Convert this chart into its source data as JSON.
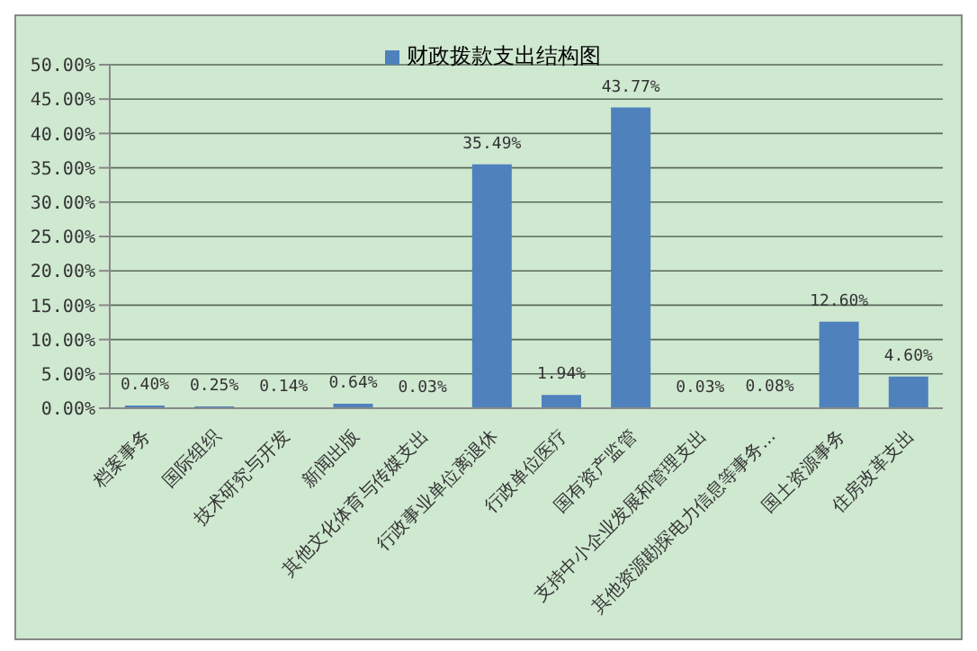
{
  "chart_data": {
    "type": "bar",
    "categories": [
      "档案事务",
      "国际组织",
      "技术研究与开发",
      "新闻出版",
      "其他文化体育与传媒支出",
      "行政事业单位离退休",
      "行政单位医疗",
      "国有资产监管",
      "支持中小企业发展和管理支出",
      "其他资源勘探电力信息等事务...",
      "国土资源事务",
      "住房改革支出"
    ],
    "series": [
      {
        "name": "财政拨款支出结构图",
        "color": "#4f81bd",
        "values": [
          0.4,
          0.25,
          0.14,
          0.64,
          0.03,
          35.49,
          1.94,
          43.77,
          0.03,
          0.08,
          12.6,
          4.6
        ],
        "value_labels": [
          "0.40%",
          "0.25%",
          "0.14%",
          "0.64%",
          "0.03%",
          "35.49%",
          "1.94%",
          "43.77%",
          "0.03%",
          "0.08%",
          "12.60%",
          "4.60%"
        ]
      }
    ],
    "ylim": [
      0,
      50
    ],
    "yticks": [
      {
        "value": 0,
        "label": "0.00%"
      },
      {
        "value": 5,
        "label": "5.00%"
      },
      {
        "value": 10,
        "label": "10.00%"
      },
      {
        "value": 15,
        "label": "15.00%"
      },
      {
        "value": 20,
        "label": "20.00%"
      },
      {
        "value": 25,
        "label": "25.00%"
      },
      {
        "value": 30,
        "label": "30.00%"
      },
      {
        "value": 35,
        "label": "35.00%"
      },
      {
        "value": 40,
        "label": "40.00%"
      },
      {
        "value": 45,
        "label": "45.00%"
      },
      {
        "value": 50,
        "label": "50.00%"
      }
    ],
    "grid": "y",
    "legend": "top"
  }
}
